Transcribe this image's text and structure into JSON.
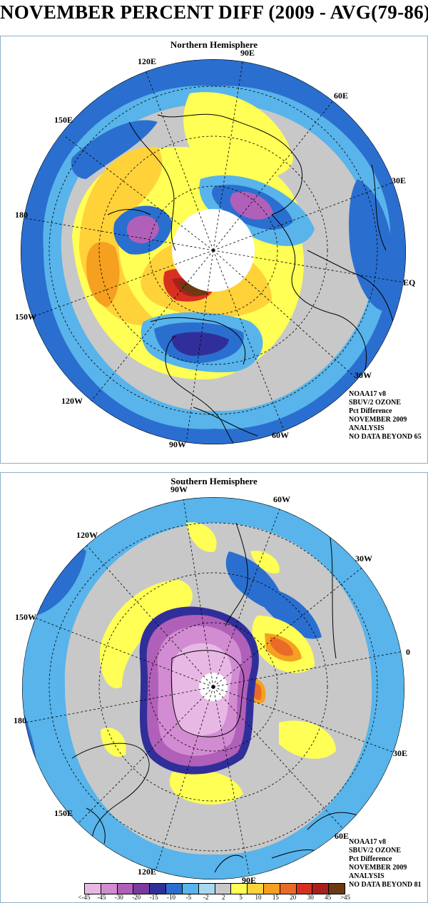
{
  "title": "NOVEMBER PERCENT DIFF (2009 - AVG(79-86))",
  "colors": {
    "lt_m45": "#e8b8e4",
    "m45": "#d28cd2",
    "m30": "#b060b8",
    "m20": "#7a3aa0",
    "m15": "#302f9a",
    "m10": "#2a6fcf",
    "m5": "#58b4ea",
    "m2": "#a8d8f0",
    "neutral": "#c8c8c8",
    "p2": "#ffff55",
    "p5": "#ffd23a",
    "p10": "#f5a020",
    "p15": "#ea6a28",
    "p20": "#d83020",
    "p30": "#a8201c",
    "gt45": "#6b3a12",
    "land": "#000000",
    "nodata": "#ffffff"
  },
  "north": {
    "title": "Northern Hemisphere",
    "labels": {
      "lon_90e": "90E",
      "lon_120e": "120E",
      "lon_60e": "60E",
      "lon_150e": "150E",
      "lon_30e": "30E",
      "lon_180": "180",
      "eq": "EQ",
      "lon_150w": "150W",
      "lon_30w": "30W",
      "lon_120w": "120W",
      "lon_60w": "60W",
      "lon_90w": "90W"
    },
    "info": {
      "line1": "NOAA17 v8",
      "line2": "SBUV/2 OZONE",
      "line3": "Pct Difference",
      "line4": "NOVEMBER 2009",
      "line5": "ANALYSIS",
      "line6": "NO DATA BEYOND  65"
    }
  },
  "south": {
    "title": "Southern Hemisphere",
    "labels": {
      "lon_90w": "90W",
      "lon_60w": "60W",
      "lon_120w": "120W",
      "lon_30w": "30W",
      "lon_150w": "150W",
      "lon_0": "0",
      "lon_180": "180",
      "lon_30e": "30E",
      "lon_150e": "150E",
      "lon_60e": "60E",
      "lon_120e": "120E",
      "lon_90e": "90E"
    },
    "info": {
      "line1": "NOAA17 v8",
      "line2": "SBUV/2 OZONE",
      "line3": "Pct Difference",
      "line4": "NOVEMBER 2009",
      "line5": "ANALYSIS",
      "line6": "NO DATA BEYOND  81"
    }
  },
  "legend": {
    "bins": [
      {
        "label": "<-45",
        "color": "#e8b8e4"
      },
      {
        "label": "-45",
        "color": "#d28cd2"
      },
      {
        "label": "-30",
        "color": "#b060b8"
      },
      {
        "label": "-20",
        "color": "#7a3aa0"
      },
      {
        "label": "-15",
        "color": "#302f9a"
      },
      {
        "label": "-10",
        "color": "#2a6fcf"
      },
      {
        "label": "-5",
        "color": "#58b4ea"
      },
      {
        "label": "-2",
        "color": "#a8d8f0"
      },
      {
        "label": "2",
        "color": "#c8c8c8"
      },
      {
        "label": "5",
        "color": "#ffff55"
      },
      {
        "label": "10",
        "color": "#ffd23a"
      },
      {
        "label": "15",
        "color": "#f5a020"
      },
      {
        "label": "20",
        "color": "#ea6a28"
      },
      {
        "label": "30",
        "color": "#d83020"
      },
      {
        "label": "45",
        "color": "#a8201c"
      },
      {
        "label": ">45",
        "color": "#6b3a12"
      }
    ]
  }
}
